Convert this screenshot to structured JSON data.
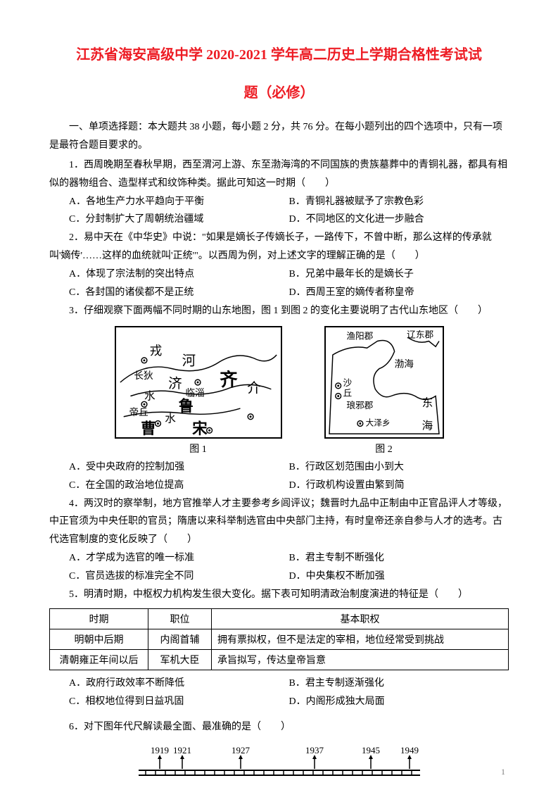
{
  "title_line1": "江苏省海安高级中学 2020-2021 学年高二历史上学期合格性考试试",
  "title_line2": "题（必修）",
  "section_intro": "一、单项选择题：本大题共 38 小题，每小题 2 分，共 76 分。在每小题列出的四个选项中，只有一项是最符合题目要求的。",
  "q1": {
    "stem": "1．西周晚期至春秋早期，西至渭河上游、东至渤海湾的不同国族的贵族墓葬中的青铜礼器，都具有相似的器物组合、造型样式和纹饰种类。据此可知这一时期（　　）",
    "A": "A．各地生产力水平趋向于平衡",
    "B": "B．青铜礼器被赋予了宗教色彩",
    "C": "C．分封制扩大了周朝统治疆域",
    "D": "D．不同地区的文化进一步融合"
  },
  "q2": {
    "stem": "2．易中天在《中华史》中说：\"如果是嫡长子传嫡长子，一路传下，不曾中断，那么这样的传承就叫'嫡传'……这样的血统就叫'正统'\"。以西周为例，对上述文字的理解正确的是（　　）",
    "A": "A．体现了宗法制的突出特点",
    "B": "B．兄弟中最年长的是嫡长子",
    "C": "C．各封国的诸侯都不是正统",
    "D": "D．西周王室的嫡传者称皇帝"
  },
  "q3": {
    "stem": "3．仔细观察下面两幅不同时期的山东地图，图 1 到图 2 的变化主要说明了古代山东地区（　　）",
    "map1_caption": "图 1",
    "map2_caption": "图 2",
    "A": "A．受中央政府的控制加强",
    "B": "B．行政区划范围由小到大",
    "C": "C．在全国的政治地位提高",
    "D": "D．行政机构设置由繁到简"
  },
  "map1_labels": {
    "rong": "戎",
    "he": "河",
    "changdi": "长狄",
    "ji": "济",
    "linzi": "临淄",
    "qi": "齐",
    "jie": "介",
    "shui1": "水",
    "diqiu": "帝丘",
    "lu": "鲁",
    "shui2": "水",
    "cao": "曹",
    "song": "宋"
  },
  "map2_labels": {
    "yuyang": "渔阳郡",
    "liaodong": "辽东郡",
    "bohai": "渤海",
    "sha": "沙",
    "qiu": "丘",
    "langya": "琅邪郡",
    "dong": "东",
    "daze": "大泽乡",
    "hai": "海"
  },
  "q4": {
    "stem": "4．两汉时的察举制，地方官推举人才主要参考乡闾评议；魏晋时九品中正制由中正官品评人才等级，中正官须为中央任职的官员；隋唐以来科举制选官由中央部门主持，有时皇帝还亲自参与人才的选考。古代选官制度的变化反映了（　　）",
    "A": "A．才学成为选官的唯一标准",
    "B": "B．君主专制不断强化",
    "C": "C．官员选拔的标准完全不同",
    "D": "D．中央集权不断加强"
  },
  "q5": {
    "stem": "5．明清时期，中枢权力机构发生很大变化。据下表可知明清政治制度演进的特征是（　　）",
    "table": {
      "headers": [
        "时期",
        "职位",
        "基本职权"
      ],
      "rows": [
        [
          "明朝中后期",
          "内阁首辅",
          "拥有票拟权，但不是法定的宰相，地位经常受到挑战"
        ],
        [
          "清朝雍正年间以后",
          "军机大臣",
          "承旨拟写，传达皇帝旨意"
        ]
      ]
    },
    "A": "A．政府行政效率不断降低",
    "B": "B．君主专制逐渐强化",
    "C": "C．相权地位得到日益巩固",
    "D": "D．内阁形成独大局面"
  },
  "q6": {
    "stem": "6．对下图年代尺解读最全面、最准确的是（　　）",
    "timeline_years": [
      "1919",
      "1921",
      "1927",
      "1937",
      "1945",
      "1949"
    ]
  },
  "page_number": "1"
}
